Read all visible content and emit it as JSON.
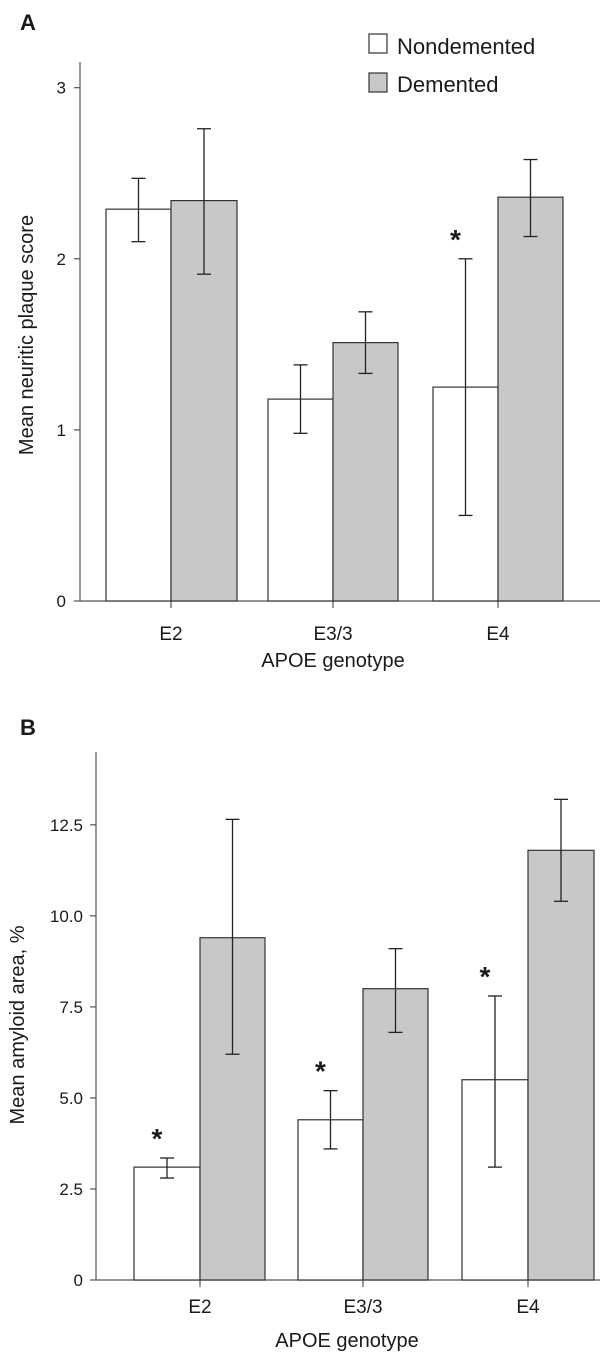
{
  "colors": {
    "nondemented": "#ffffff",
    "demented": "#c8c8c8",
    "stroke": "#333333"
  },
  "chart_data": [
    {
      "type": "bar",
      "panel": "A",
      "categories": [
        "E2",
        "E3/3",
        "E4"
      ],
      "xlabel": "APOE genotype",
      "ylabel": "Mean neuritic plaque score",
      "ylim": [
        0,
        3.15
      ],
      "yticks": [
        "0",
        "1",
        "2",
        "3"
      ],
      "ytick_values": [
        0,
        1,
        2,
        3
      ],
      "legend": {
        "placement": "top-right",
        "entries": [
          "Nondemented",
          "Demented"
        ]
      },
      "series": [
        {
          "name": "Nondemented",
          "values": [
            2.29,
            1.18,
            1.25
          ],
          "err_low": [
            2.1,
            0.98,
            0.5
          ],
          "err_high": [
            2.47,
            1.38,
            2.0
          ],
          "sig": [
            false,
            false,
            true
          ]
        },
        {
          "name": "Demented",
          "values": [
            2.34,
            1.51,
            2.36
          ],
          "err_low": [
            1.91,
            1.33,
            2.13
          ],
          "err_high": [
            2.76,
            1.69,
            2.58
          ],
          "sig": [
            false,
            false,
            false
          ]
        }
      ],
      "annotation": "*"
    },
    {
      "type": "bar",
      "panel": "B",
      "categories": [
        "E2",
        "E3/3",
        "E4"
      ],
      "xlabel": "APOE genotype",
      "ylabel": "Mean amyloid area, %",
      "ylim": [
        0,
        14.5
      ],
      "yticks": [
        "0",
        "2.5",
        "5.0",
        "7.5",
        "10.0",
        "12.5"
      ],
      "ytick_values": [
        0,
        2.5,
        5.0,
        7.5,
        10.0,
        12.5
      ],
      "series": [
        {
          "name": "Nondemented",
          "values": [
            3.1,
            4.4,
            5.5
          ],
          "err_low": [
            2.8,
            3.6,
            3.1
          ],
          "err_high": [
            3.35,
            5.2,
            7.8
          ],
          "sig": [
            true,
            true,
            true
          ]
        },
        {
          "name": "Demented",
          "values": [
            9.4,
            8.0,
            11.8
          ],
          "err_low": [
            6.2,
            6.8,
            10.4
          ],
          "err_high": [
            12.65,
            9.1,
            13.2
          ],
          "sig": [
            false,
            false,
            false
          ]
        }
      ],
      "annotation": "*"
    }
  ]
}
